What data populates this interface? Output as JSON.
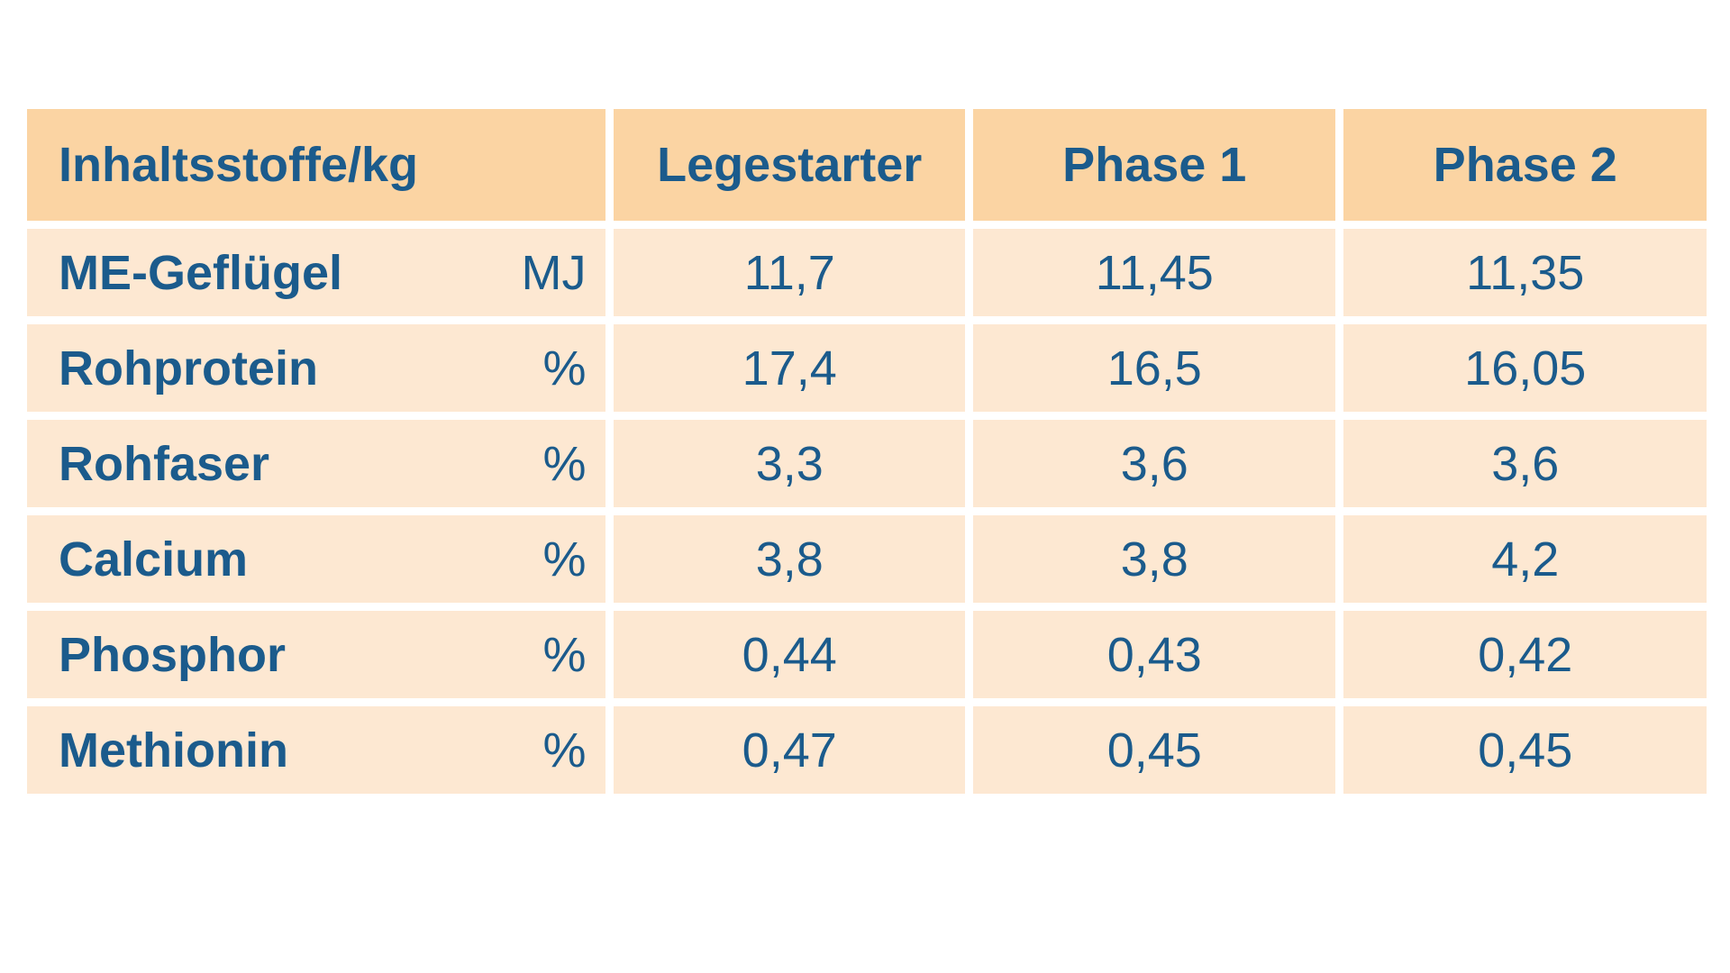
{
  "table": {
    "header": {
      "name": "Inhaltsstoffe/kg",
      "columns": [
        "Legestarter",
        "Phase 1",
        "Phase 2"
      ]
    },
    "rows": [
      {
        "label": "ME-Geflügel",
        "unit": "MJ",
        "values": [
          "11,7",
          "11,45",
          "11,35"
        ]
      },
      {
        "label": "Rohprotein",
        "unit": "%",
        "values": [
          "17,4",
          "16,5",
          "16,05"
        ]
      },
      {
        "label": "Rohfaser",
        "unit": "%",
        "values": [
          "3,3",
          "3,6",
          "3,6"
        ]
      },
      {
        "label": "Calcium",
        "unit": "%",
        "values": [
          "3,8",
          "3,8",
          "4,2"
        ]
      },
      {
        "label": "Phosphor",
        "unit": "%",
        "values": [
          "0,44",
          "0,43",
          "0,42"
        ]
      },
      {
        "label": "Methionin",
        "unit": "%",
        "values": [
          "0,47",
          "0,45",
          "0,45"
        ]
      }
    ],
    "colors": {
      "header_bg": "#fbd4a3",
      "row_bg": "#fde8d2",
      "text": "#1b5b8c"
    }
  }
}
